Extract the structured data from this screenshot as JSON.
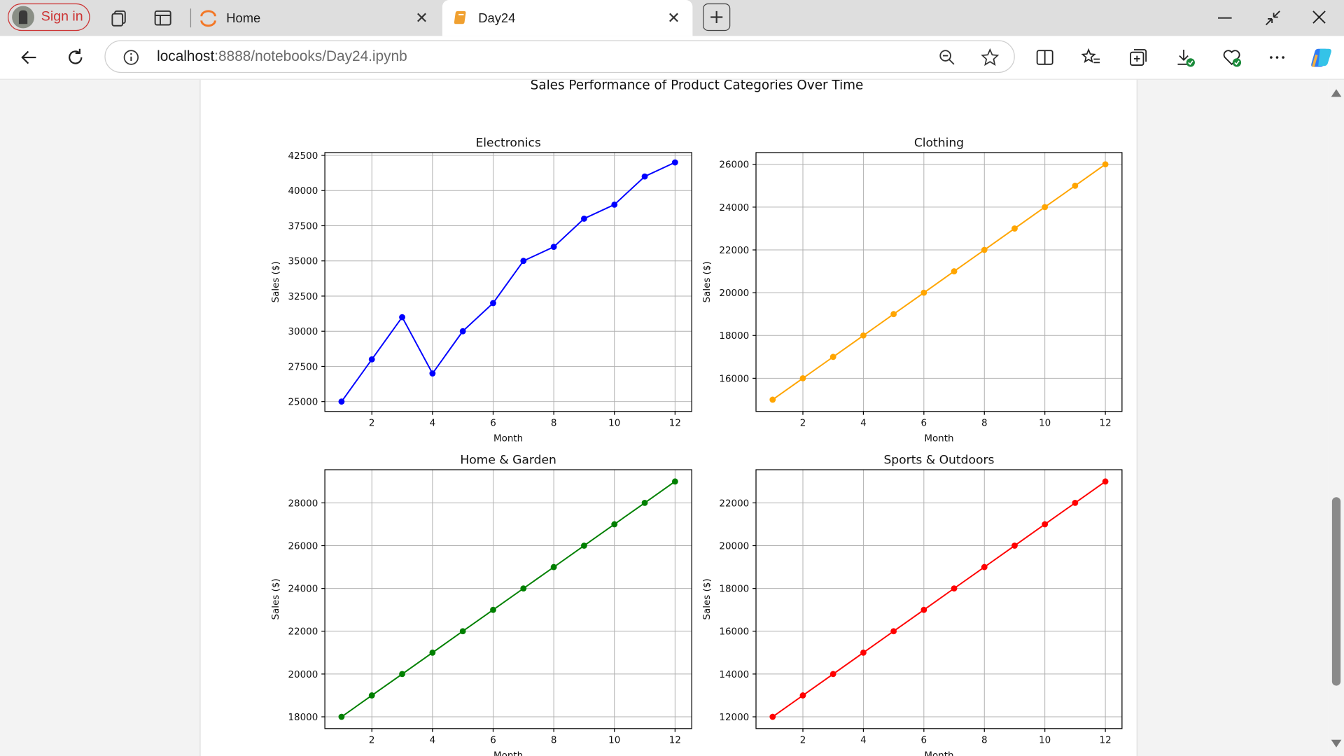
{
  "browser": {
    "sign_in_label": "Sign in",
    "tabs": [
      {
        "title": "Home",
        "icon": "jupyter-icon",
        "active": false
      },
      {
        "title": "Day24",
        "icon": "notebook-icon",
        "active": true
      }
    ],
    "url_host": "localhost",
    "url_rest": ":8888/notebooks/Day24.ipynb"
  },
  "figure": {
    "suptitle": "Sales Performance of Product Categories Over Time"
  },
  "chart_data": [
    {
      "type": "line",
      "title": "Electronics",
      "xlabel": "Month",
      "ylabel": "Sales ($)",
      "x": [
        1,
        2,
        3,
        4,
        5,
        6,
        7,
        8,
        9,
        10,
        11,
        12
      ],
      "series": [
        {
          "values": [
            25000,
            28000,
            31000,
            27000,
            30000,
            32000,
            35000,
            36000,
            38000,
            39000,
            41000,
            42000
          ],
          "color": "#0000ff"
        }
      ],
      "xticks": [
        2,
        4,
        6,
        8,
        10,
        12
      ],
      "yticks": [
        25000,
        27500,
        30000,
        32500,
        35000,
        37500,
        40000,
        42500
      ],
      "xlim": [
        0.45,
        12.55
      ],
      "ylim": [
        24300,
        42700
      ],
      "grid": true
    },
    {
      "type": "line",
      "title": "Clothing",
      "xlabel": "Month",
      "ylabel": "Sales ($)",
      "x": [
        1,
        2,
        3,
        4,
        5,
        6,
        7,
        8,
        9,
        10,
        11,
        12
      ],
      "series": [
        {
          "values": [
            15000,
            16000,
            17000,
            18000,
            19000,
            20000,
            21000,
            22000,
            23000,
            24000,
            25000,
            26000
          ],
          "color": "#ffa500"
        }
      ],
      "xticks": [
        2,
        4,
        6,
        8,
        10,
        12
      ],
      "yticks": [
        16000,
        18000,
        20000,
        22000,
        24000,
        26000
      ],
      "xlim": [
        0.45,
        12.55
      ],
      "ylim": [
        14450,
        26550
      ],
      "grid": true
    },
    {
      "type": "line",
      "title": "Home & Garden",
      "xlabel": "Month",
      "ylabel": "Sales ($)",
      "x": [
        1,
        2,
        3,
        4,
        5,
        6,
        7,
        8,
        9,
        10,
        11,
        12
      ],
      "series": [
        {
          "values": [
            18000,
            19000,
            20000,
            21000,
            22000,
            23000,
            24000,
            25000,
            26000,
            27000,
            28000,
            29000
          ],
          "color": "#008000"
        }
      ],
      "xticks": [
        2,
        4,
        6,
        8,
        10,
        12
      ],
      "yticks": [
        18000,
        20000,
        22000,
        24000,
        26000,
        28000
      ],
      "xlim": [
        0.45,
        12.55
      ],
      "ylim": [
        17450,
        29550
      ],
      "grid": true
    },
    {
      "type": "line",
      "title": "Sports & Outdoors",
      "xlabel": "Month",
      "ylabel": "Sales ($)",
      "x": [
        1,
        2,
        3,
        4,
        5,
        6,
        7,
        8,
        9,
        10,
        11,
        12
      ],
      "series": [
        {
          "values": [
            12000,
            13000,
            14000,
            15000,
            16000,
            17000,
            18000,
            19000,
            20000,
            21000,
            22000,
            23000
          ],
          "color": "#ff0000"
        }
      ],
      "xticks": [
        2,
        4,
        6,
        8,
        10,
        12
      ],
      "yticks": [
        12000,
        14000,
        16000,
        18000,
        20000,
        22000
      ],
      "xlim": [
        0.45,
        12.55
      ],
      "ylim": [
        11450,
        23550
      ],
      "grid": true
    }
  ]
}
